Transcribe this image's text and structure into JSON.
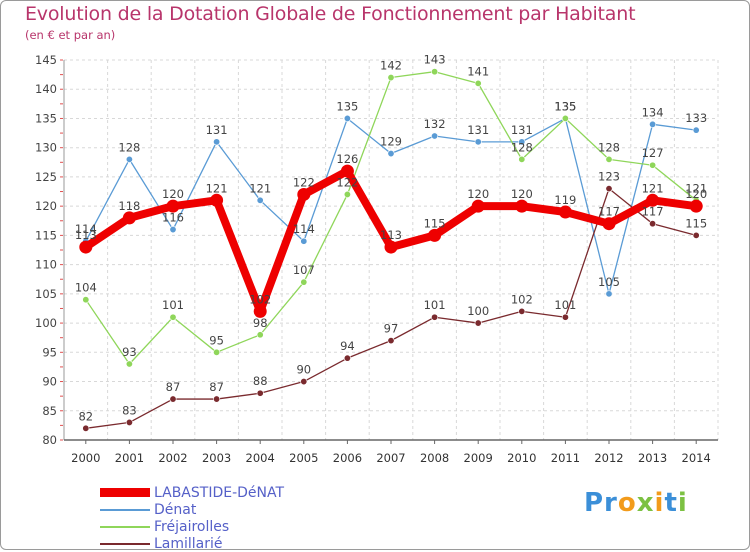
{
  "header": {
    "title": "Evolution de la Dotation Globale de Fonctionnement par Habitant",
    "subtitle": "(en € et par an)"
  },
  "logo": {
    "text": "Proxiti"
  },
  "chart_data": {
    "type": "line",
    "title": "Evolution de la Dotation Globale de Fonctionnement par Habitant",
    "subtitle": "(en € et par an)",
    "xlabel": "",
    "ylabel": "",
    "ylim": [
      80,
      145
    ],
    "yticks": [
      80,
      85,
      90,
      95,
      100,
      105,
      110,
      115,
      120,
      125,
      130,
      135,
      140,
      145
    ],
    "grid": true,
    "legend_position": "bottom-left",
    "categories": [
      "2000",
      "2001",
      "2002",
      "2003",
      "2004",
      "2005",
      "2006",
      "2007",
      "2008",
      "2009",
      "2010",
      "2011",
      "2012",
      "2013",
      "2014"
    ],
    "series": [
      {
        "name": "LABASTIDE-DéNAT",
        "color": "#ee0000",
        "emphasis": true,
        "values": [
          113,
          118,
          120,
          121,
          102,
          122,
          126,
          113,
          115,
          120,
          120,
          119,
          117,
          121,
          120
        ]
      },
      {
        "name": "Dénat",
        "color": "#5a9bd5",
        "emphasis": false,
        "values": [
          114,
          128,
          116,
          131,
          121,
          114,
          135,
          129,
          132,
          131,
          131,
          135,
          105,
          134,
          133
        ]
      },
      {
        "name": "Fréjairolles",
        "color": "#8fd65a",
        "emphasis": false,
        "values": [
          104,
          93,
          101,
          95,
          98,
          107,
          122,
          142,
          143,
          141,
          128,
          135,
          128,
          127,
          121
        ]
      },
      {
        "name": "Lamillarié",
        "color": "#7a2a2e",
        "emphasis": false,
        "values": [
          82,
          83,
          87,
          87,
          88,
          90,
          94,
          97,
          101,
          100,
          102,
          101,
          123,
          117,
          115
        ]
      }
    ]
  }
}
